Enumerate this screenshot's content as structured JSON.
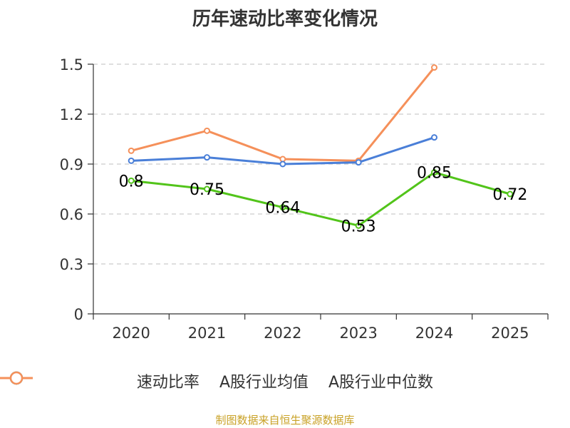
{
  "chart_data": {
    "type": "line",
    "title": "历年速动比率变化情况",
    "categories": [
      "2020",
      "2021",
      "2022",
      "2023",
      "2024",
      "2025"
    ],
    "yticks": [
      "0",
      "0.3",
      "0.6",
      "0.9",
      "1.2",
      "1.5"
    ],
    "ylim": [
      0,
      1.5
    ],
    "xlabel": "",
    "ylabel": "",
    "grid": true,
    "legend_position": "bottom",
    "series": [
      {
        "name": "速动比率",
        "color": "#52c41a",
        "values": [
          0.8,
          0.75,
          0.64,
          0.53,
          0.85,
          0.72
        ],
        "labels": [
          "0.8",
          "0.75",
          "0.64",
          "0.53",
          "0.85",
          "0.72"
        ]
      },
      {
        "name": "A股行业均值",
        "color": "#4a7fd8",
        "values": [
          0.92,
          0.94,
          0.9,
          0.91,
          1.06,
          null
        ]
      },
      {
        "name": "A股行业中位数",
        "color": "#f5905a",
        "values": [
          0.98,
          1.1,
          0.93,
          0.92,
          1.48,
          null
        ]
      }
    ]
  },
  "source": "制图数据来自恒生聚源数据库"
}
